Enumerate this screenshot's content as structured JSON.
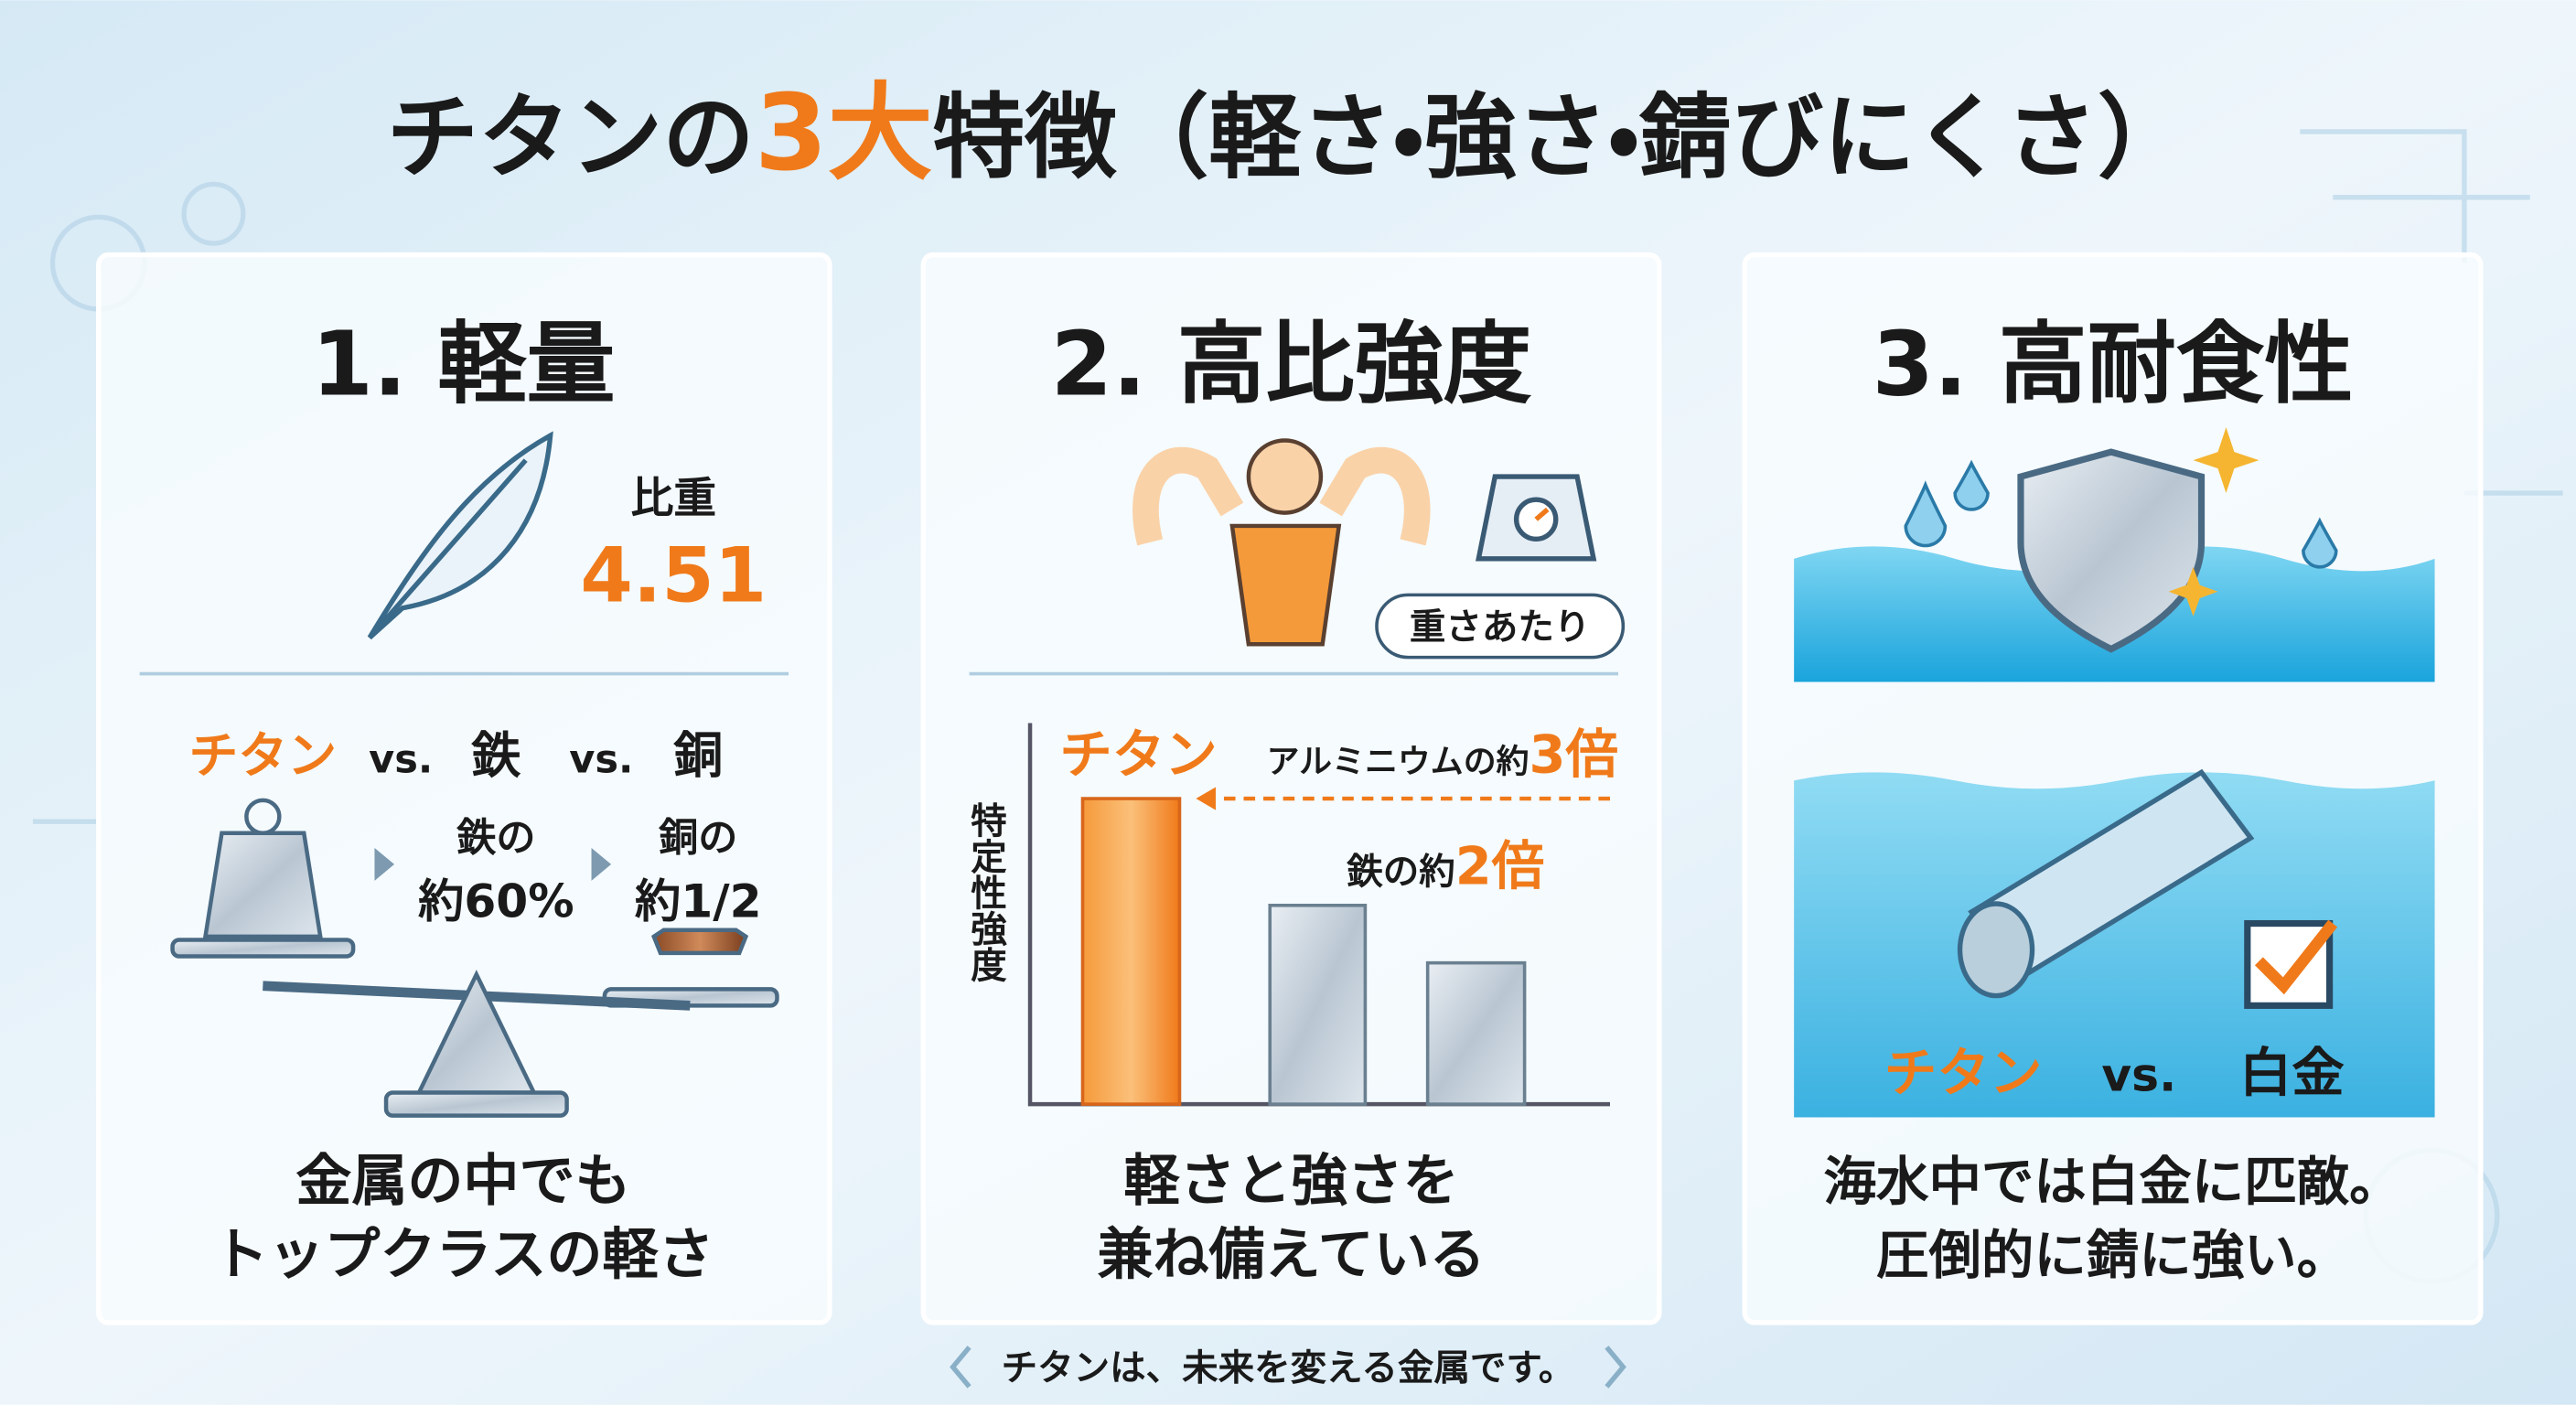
{
  "title": {
    "prefix": "チタンの",
    "highlight": "3大",
    "suffix": "特徴（軽さ・強さ・錆びにくさ）"
  },
  "panels": [
    {
      "heading": "1. 軽量",
      "gravity_label": "比重",
      "gravity_value": "4.51",
      "compare": [
        "チタン",
        "vs.",
        "鉄",
        "vs.",
        "銅"
      ],
      "iron_note": [
        "鉄の",
        "約60%"
      ],
      "copper_note": [
        "銅の",
        "約1/2"
      ],
      "caption": [
        "金属の中でも",
        "トップクラスの軽さ"
      ]
    },
    {
      "heading": "2. 高比強度",
      "bubble": "重さあたり",
      "bar_label": "チタン",
      "aluminum_note": {
        "text": "アルミニウムの約",
        "ratio": "3倍"
      },
      "iron_note": {
        "text": "鉄の約",
        "ratio": "2倍"
      },
      "axis_label": "特定性強度",
      "caption": [
        "軽さと強さを",
        "兼ね備えている"
      ]
    },
    {
      "heading": "3. 高耐食性",
      "compare": [
        "チタン",
        "vs.",
        "白金"
      ],
      "caption": [
        "海水中では白金に匹敵。",
        "圧倒的に錆に強い。"
      ]
    }
  ],
  "footer": "チタンは、未来を変える金属です。"
}
